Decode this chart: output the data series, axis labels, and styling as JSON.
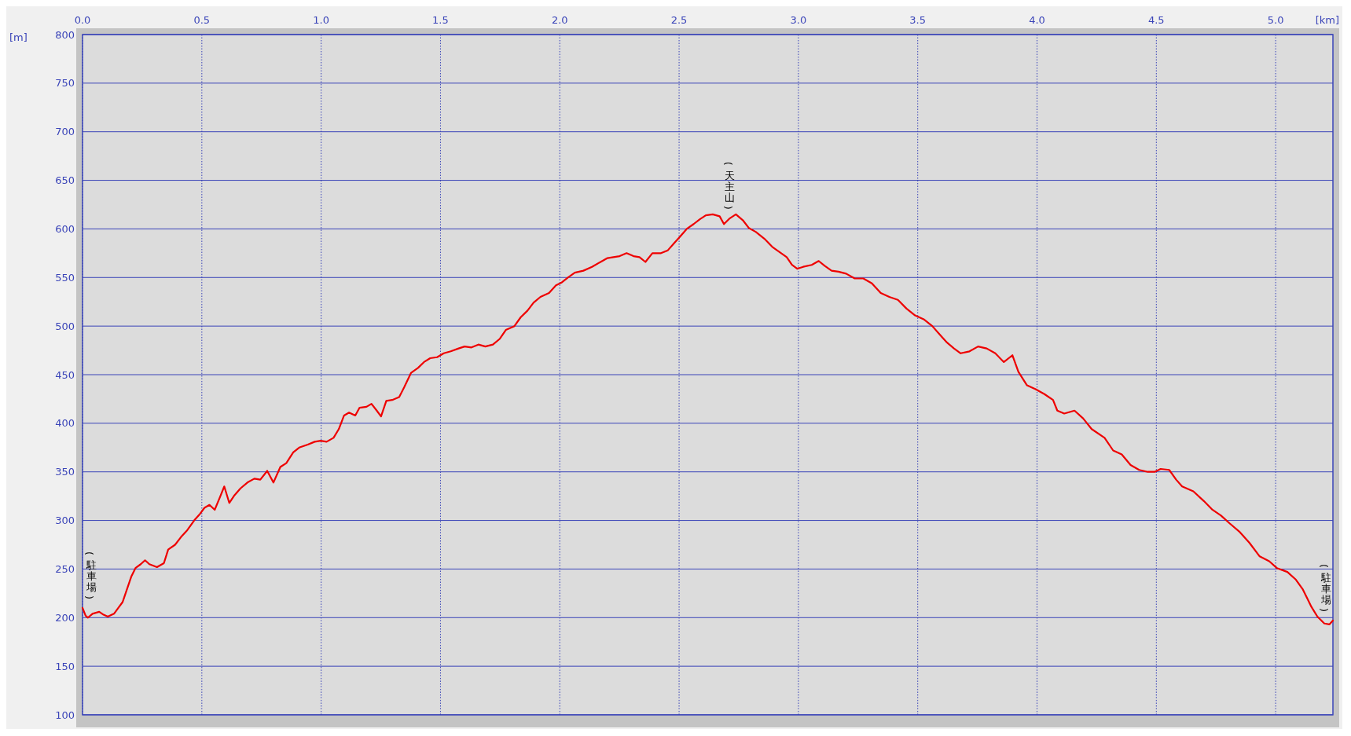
{
  "chart_data": {
    "type": "line",
    "xlabel": "[km]",
    "ylabel": "[m]",
    "xlim": [
      0,
      5.24
    ],
    "xticks": [
      {
        "value": 0,
        "label": "0.0"
      },
      0.5,
      {
        "value": 1,
        "label": "1.0"
      },
      1.5,
      {
        "value": 2,
        "label": "2.0"
      },
      2.5,
      {
        "value": 3,
        "label": "3.0"
      },
      3.5,
      {
        "value": 4,
        "label": "4.0"
      },
      4.5,
      {
        "value": 5,
        "label": "5.0"
      }
    ],
    "ylim": [
      100,
      800
    ],
    "yticks": [
      100,
      150,
      200,
      250,
      300,
      350,
      400,
      450,
      500,
      550,
      600,
      650,
      700,
      750,
      800
    ],
    "grid": true,
    "marker": "none",
    "line_style": "solid",
    "annotations": [
      {
        "text": "(駐車場)",
        "x": 0,
        "y": 210
      },
      {
        "text": "(天主山)",
        "x": 2.713,
        "y": 611
      },
      {
        "text": "(駐車場)",
        "x": 5.24,
        "y": 197
      }
    ],
    "series": [
      {
        "color": "#ee0000",
        "x": [
          0,
          0.013,
          0.023,
          0.042,
          0.07,
          0.088,
          0.106,
          0.132,
          0.15,
          0.168,
          0.186,
          0.204,
          0.222,
          0.244,
          0.262,
          0.28,
          0.312,
          0.341,
          0.359,
          0.388,
          0.413,
          0.439,
          0.468,
          0.493,
          0.511,
          0.532,
          0.554,
          0.576,
          0.594,
          0.615,
          0.637,
          0.662,
          0.691,
          0.72,
          0.745,
          0.774,
          0.8,
          0.829,
          0.854,
          0.883,
          0.908,
          0.944,
          0.973,
          0.998,
          1.023,
          1.052,
          1.074,
          1.096,
          1.117,
          1.143,
          1.161,
          1.19,
          1.211,
          1.233,
          1.251,
          1.273,
          1.298,
          1.327,
          1.348,
          1.377,
          1.406,
          1.431,
          1.457,
          1.486,
          1.514,
          1.543,
          1.576,
          1.601,
          1.63,
          1.659,
          1.688,
          1.72,
          1.749,
          1.774,
          1.81,
          1.836,
          1.865,
          1.89,
          1.919,
          1.955,
          1.984,
          2.009,
          2.034,
          2.063,
          2.099,
          2.135,
          2.171,
          2.2,
          2.225,
          2.251,
          2.28,
          2.309,
          2.334,
          2.359,
          2.388,
          2.424,
          2.453,
          2.478,
          2.504,
          2.532,
          2.561,
          2.587,
          2.612,
          2.641,
          2.67,
          2.688,
          2.713,
          2.738,
          2.767,
          2.792,
          2.821,
          2.857,
          2.893,
          2.922,
          2.951,
          2.973,
          2.995,
          3.02,
          3.056,
          3.085,
          3.11,
          3.139,
          3.168,
          3.2,
          3.236,
          3.272,
          3.308,
          3.345,
          3.381,
          3.417,
          3.453,
          3.489,
          3.525,
          3.561,
          3.597,
          3.623,
          3.652,
          3.68,
          3.717,
          3.753,
          3.789,
          3.825,
          3.861,
          3.897,
          3.922,
          3.958,
          3.994,
          4.031,
          4.067,
          4.085,
          4.114,
          4.157,
          4.193,
          4.229,
          4.283,
          4.319,
          4.355,
          4.392,
          4.428,
          4.464,
          4.493,
          4.518,
          4.554,
          4.583,
          4.608,
          4.655,
          4.699,
          4.735,
          4.771,
          4.807,
          4.85,
          4.89,
          4.933,
          4.973,
          5.005,
          5.049,
          5.085,
          5.114,
          5.15,
          5.175,
          5.204,
          5.225,
          5.24
        ],
        "values": [
          210,
          202,
          200,
          204,
          206,
          203,
          201,
          204,
          210,
          216,
          229,
          242,
          251,
          255,
          259,
          255,
          252,
          256,
          270,
          275,
          283,
          290,
          300,
          307,
          313,
          316,
          311,
          324,
          335,
          318,
          326,
          333,
          339,
          343,
          342,
          351,
          339,
          355,
          359,
          370,
          375,
          378,
          381,
          382,
          381,
          385,
          394,
          408,
          411,
          408,
          416,
          417,
          420,
          413,
          407,
          423,
          424,
          427,
          437,
          452,
          457,
          463,
          467,
          468,
          472,
          474,
          477,
          479,
          478,
          481,
          479,
          481,
          487,
          496,
          500,
          509,
          516,
          524,
          530,
          534,
          542,
          545,
          550,
          555,
          557,
          561,
          566,
          570,
          571,
          572,
          575,
          572,
          571,
          566,
          575,
          575,
          578,
          585,
          592,
          600,
          605,
          610,
          614,
          615,
          613,
          605,
          611,
          615,
          609,
          601,
          597,
          590,
          581,
          576,
          571,
          563,
          559,
          561,
          563,
          567,
          562,
          557,
          556,
          554,
          549,
          549,
          544,
          534,
          530,
          527,
          518,
          511,
          507,
          500,
          490,
          483,
          477,
          472,
          474,
          479,
          477,
          472,
          463,
          470,
          453,
          439,
          435,
          430,
          424,
          413,
          410,
          413,
          405,
          394,
          385,
          372,
          368,
          357,
          352,
          350,
          350,
          353,
          352,
          342,
          335,
          330,
          320,
          311,
          305,
          297,
          288,
          277,
          263,
          258,
          251,
          247,
          239,
          229,
          211,
          201,
          194,
          193,
          197
        ]
      }
    ]
  }
}
